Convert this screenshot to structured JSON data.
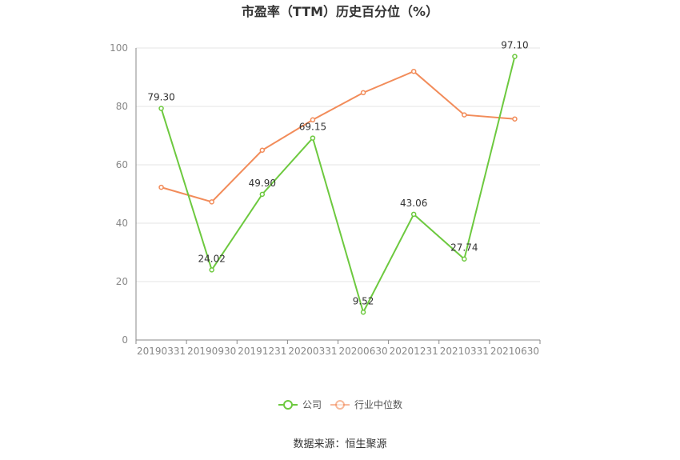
{
  "chart_data": {
    "type": "line",
    "title": "市盈率（TTM）历史百分位（%）",
    "categories": [
      "20190331",
      "20190930",
      "20191231",
      "20200331",
      "20200630",
      "20201231",
      "20210331",
      "20210630"
    ],
    "series": [
      {
        "name": "公司",
        "color": "#6dc93f",
        "values": [
          79.3,
          24.02,
          49.9,
          69.15,
          9.52,
          43.06,
          27.74,
          97.1
        ],
        "labels": [
          "79.30",
          "24.02",
          "49.90",
          "69.15",
          "9.52",
          "43.06",
          "27.74",
          "97.10"
        ]
      },
      {
        "name": "行业中位数",
        "color": "#f28c5a",
        "values": [
          52.3,
          47.3,
          65.0,
          75.4,
          84.7,
          92.0,
          77.1,
          75.7
        ]
      }
    ],
    "yticks": [
      "0",
      "20",
      "40",
      "60",
      "80",
      "100"
    ],
    "ylim": [
      0,
      100
    ],
    "grid": true,
    "legend": "bottom-center",
    "source": "数据来源：恒生聚源"
  }
}
